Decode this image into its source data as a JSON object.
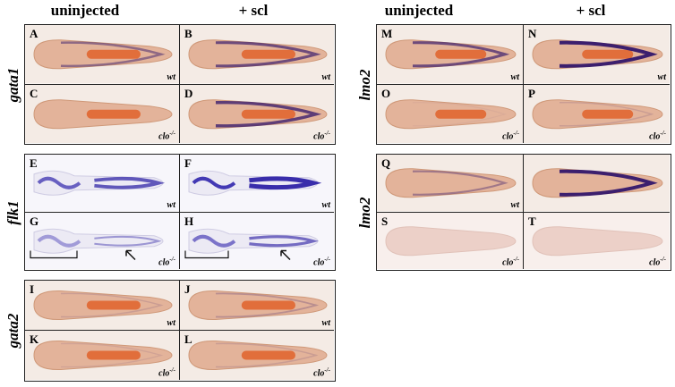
{
  "left": {
    "column_headers": [
      "uninjected",
      "+ scl"
    ],
    "groups": [
      {
        "gene": "gata1",
        "panels": [
          {
            "letter": "A",
            "genotype": {
              "name": "wt"
            }
          },
          {
            "letter": "B",
            "genotype": {
              "name": "wt"
            }
          },
          {
            "letter": "C",
            "genotype": {
              "name": "clo",
              "superscript": "-/-"
            }
          },
          {
            "letter": "D",
            "genotype": {
              "name": "clo",
              "superscript": "-/-"
            }
          }
        ]
      },
      {
        "gene": "flk1",
        "panels": [
          {
            "letter": "E",
            "genotype": {
              "name": "wt"
            }
          },
          {
            "letter": "F",
            "genotype": {
              "name": "wt"
            }
          },
          {
            "letter": "G",
            "genotype": {
              "name": "clo",
              "superscript": "-/-"
            }
          },
          {
            "letter": "H",
            "genotype": {
              "name": "clo",
              "superscript": "-/-"
            }
          }
        ]
      },
      {
        "gene": "gata2",
        "panels": [
          {
            "letter": "I",
            "genotype": {
              "name": "wt"
            }
          },
          {
            "letter": "J",
            "genotype": {
              "name": "wt"
            }
          },
          {
            "letter": "K",
            "genotype": {
              "name": "clo",
              "superscript": "-/-"
            }
          },
          {
            "letter": "L",
            "genotype": {
              "name": "clo",
              "superscript": "-/-"
            }
          }
        ]
      }
    ]
  },
  "right": {
    "column_headers": [
      "uninjected",
      "+ scl"
    ],
    "groups": [
      {
        "gene": "lmo2",
        "panels": [
          {
            "letter": "M",
            "genotype": {
              "name": "wt"
            }
          },
          {
            "letter": "N",
            "genotype": {
              "name": "wt"
            }
          },
          {
            "letter": "O",
            "genotype": {
              "name": "clo",
              "superscript": "-/-"
            }
          },
          {
            "letter": "P",
            "genotype": {
              "name": "clo",
              "superscript": "-/-"
            }
          }
        ]
      },
      {
        "gene": "lmo2",
        "panels": [
          {
            "letter": "Q",
            "genotype": {
              "name": "wt"
            }
          },
          {},
          {
            "letter": "S",
            "genotype": {
              "name": "clo",
              "superscript": "-/-"
            }
          },
          {
            "letter": "T",
            "genotype": {
              "name": "clo",
              "superscript": "-/-"
            }
          }
        ]
      }
    ]
  }
}
